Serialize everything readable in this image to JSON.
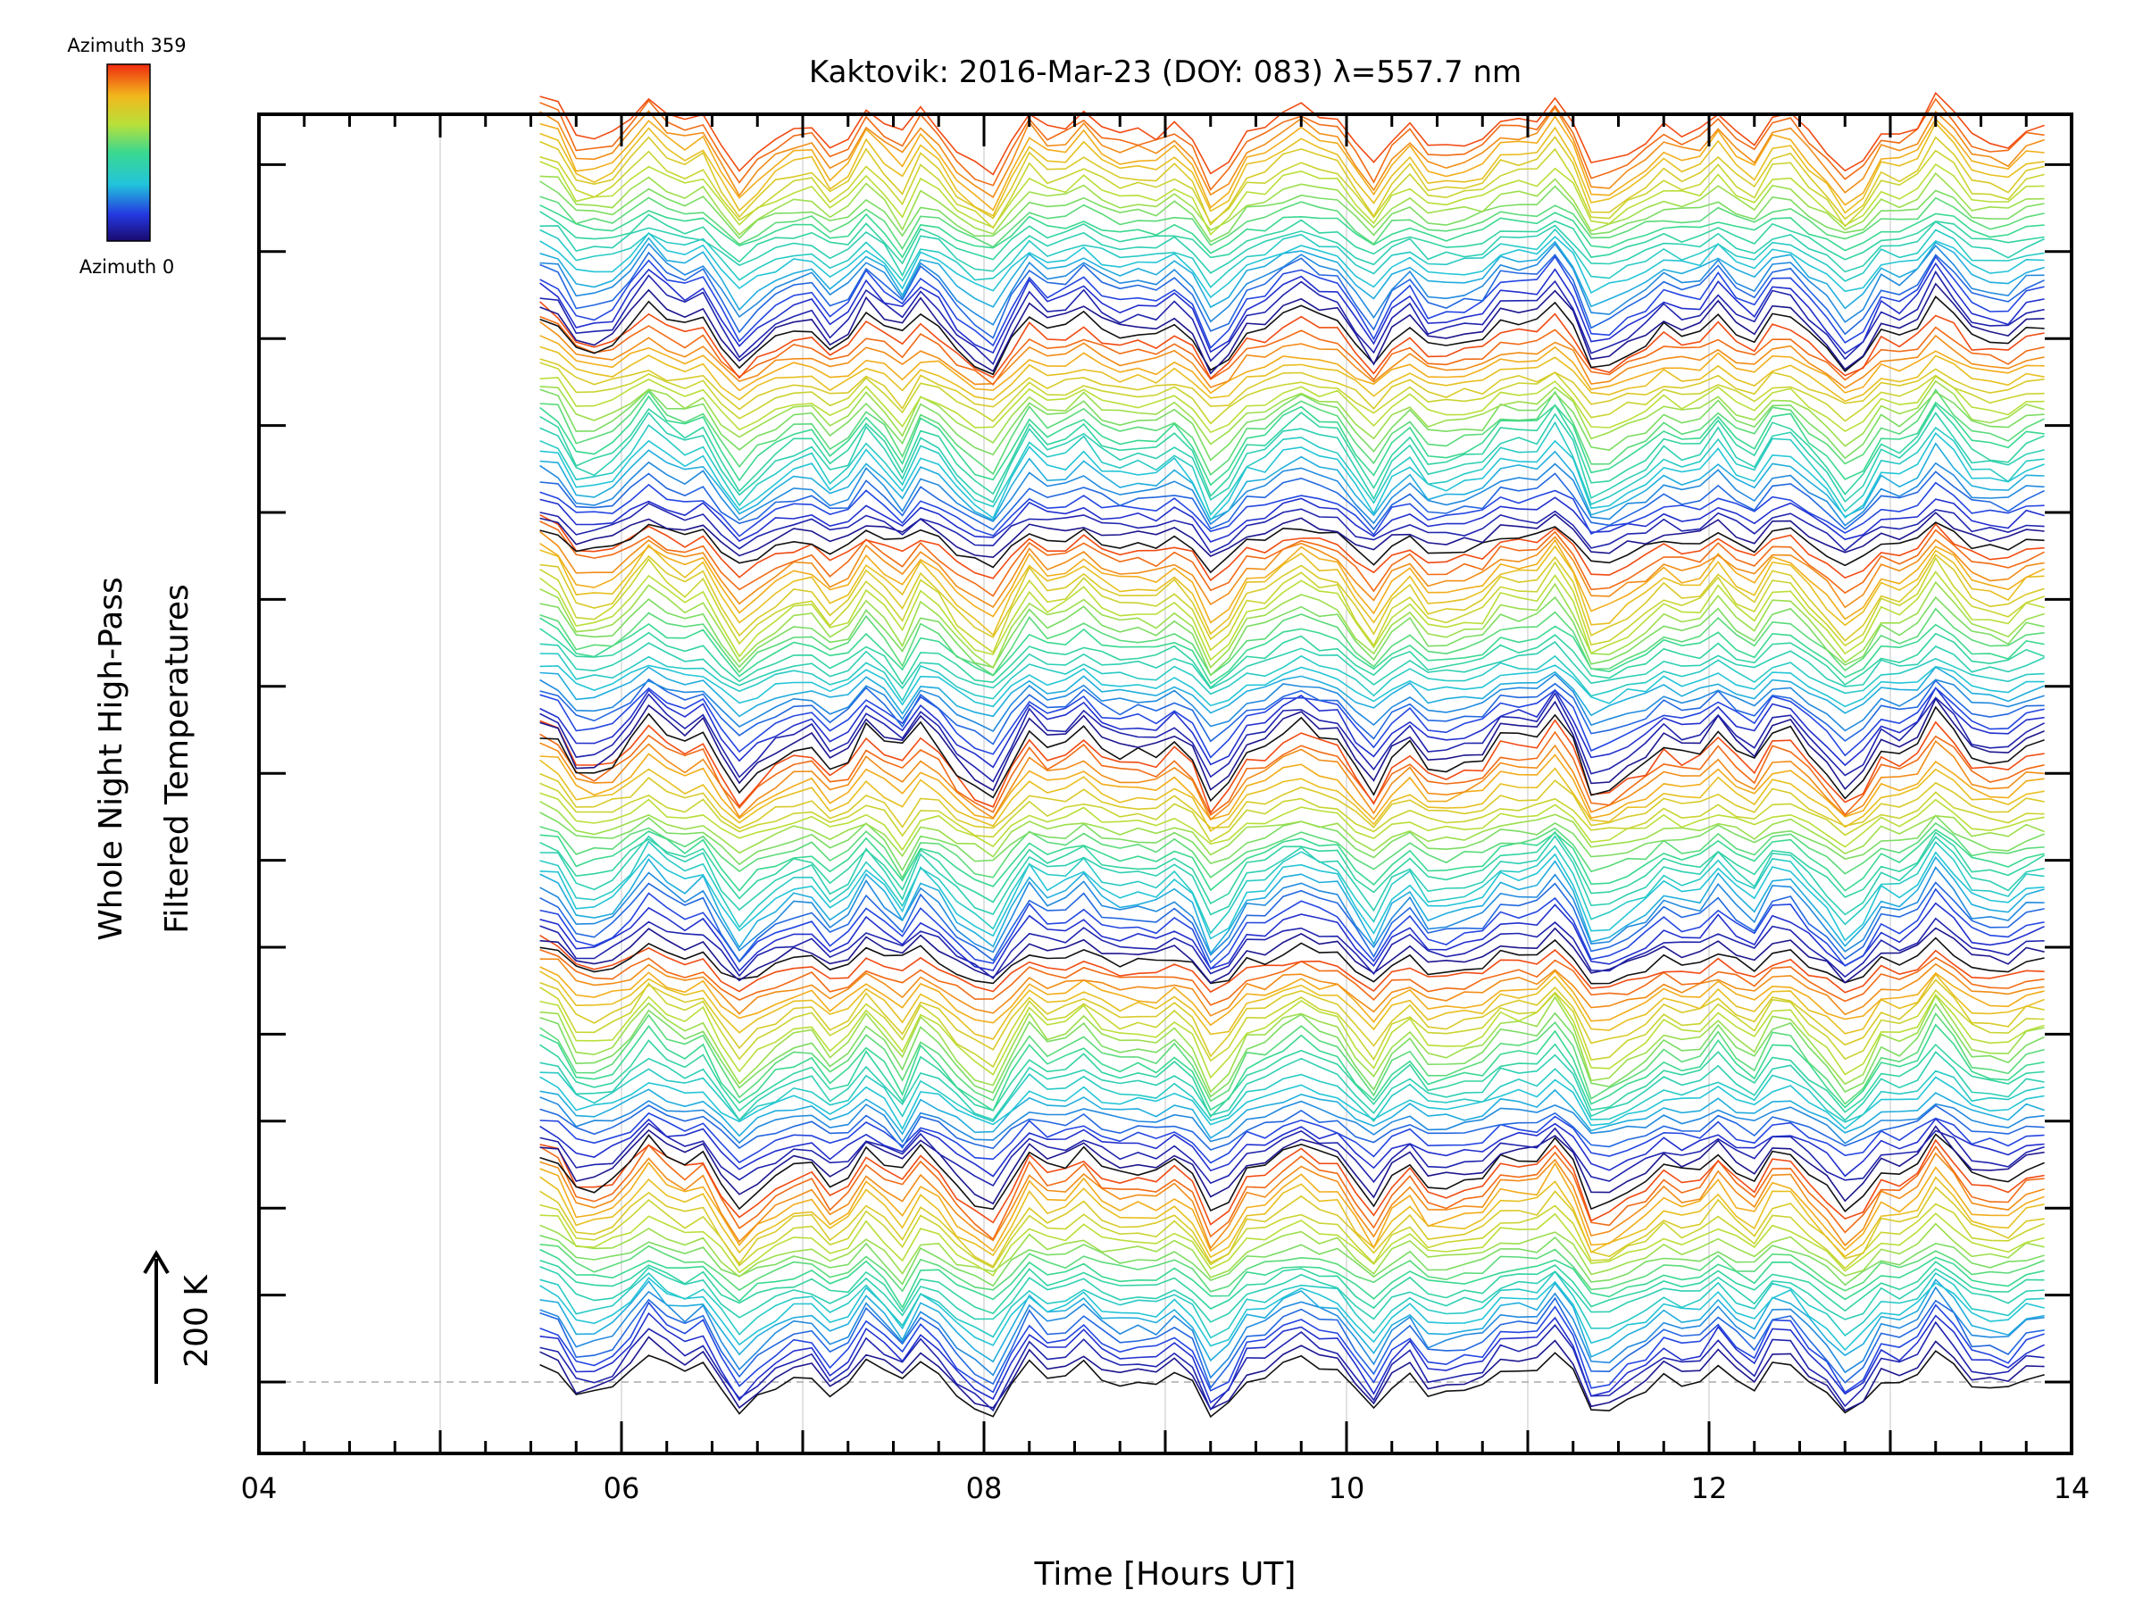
{
  "chart_data": {
    "type": "line",
    "title": "Kaktovik: 2016-Mar-23 (DOY: 083) λ=557.7 nm",
    "xlabel": "Time [Hours UT]",
    "ylabel_line1": "Whole Night High-Pass",
    "ylabel_line2": "Filtered Temperatures",
    "scale_label": "200 K",
    "xlim": [
      4,
      14
    ],
    "x_ticks": [
      "04",
      "06",
      "08",
      "10",
      "12",
      "14"
    ],
    "x_tick_values": [
      4,
      6,
      8,
      10,
      12,
      14
    ],
    "x_grid_values": [
      5,
      6,
      7,
      8,
      9,
      10,
      11,
      12,
      13
    ],
    "data_start_hour": 5.55,
    "data_end_hour": 13.85,
    "sample_interval_hours": 0.1,
    "series_count": 144,
    "series_description": "Stacked high-pass filtered temperature traces, one per azimuth bin, each offset vertically",
    "baseline_label": "dashed baseline at lowest trace offset",
    "legend": {
      "type": "colorbar",
      "top_label": "Azimuth 359",
      "bottom_label": "Azimuth 0",
      "colormap": "rainbow",
      "range": [
        0,
        359
      ]
    },
    "colors": {
      "axis": "#000000",
      "grid": "#d9d9d9",
      "baseline": "#aaaaaa"
    }
  }
}
